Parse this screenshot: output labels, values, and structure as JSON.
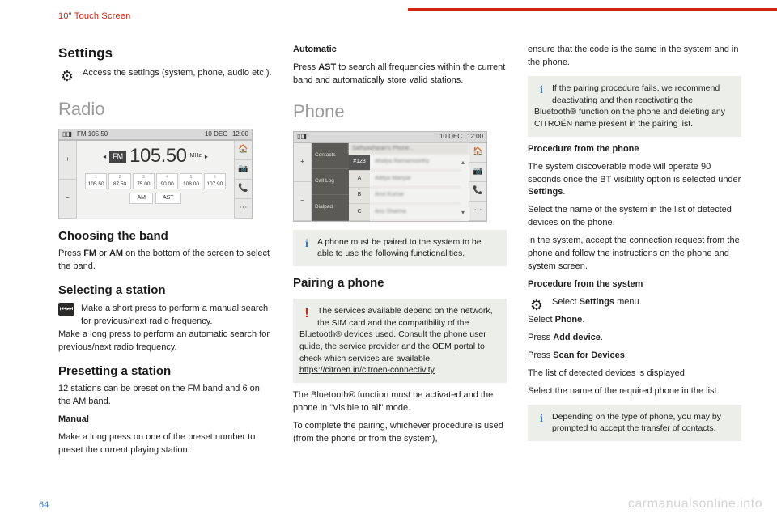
{
  "header": {
    "section": "10\" Touch Screen"
  },
  "col1": {
    "settings": {
      "title": "Settings",
      "text": "Access the settings (system, phone, audio etc.)."
    },
    "radio_h": "Radio",
    "radio_shot": {
      "top_left": "FM 105.50",
      "top_date": "10 DEC",
      "top_time": "12:00",
      "band": "FM",
      "freq": "105.50",
      "unit": "MHz",
      "presets": [
        {
          "n": "1",
          "v": "105.50"
        },
        {
          "n": "2",
          "v": "87.50"
        },
        {
          "n": "3",
          "v": "75.00"
        },
        {
          "n": "4",
          "v": "90.00"
        },
        {
          "n": "5",
          "v": "108.00"
        },
        {
          "n": "6",
          "v": "107.90"
        }
      ],
      "bands": [
        "AM",
        "AST"
      ],
      "side_icons": [
        "🏠",
        "📷",
        "📞",
        "⋯"
      ]
    },
    "choose": {
      "title": "Choosing the band",
      "p1a": "Press ",
      "p1b": "FM",
      "p1c": " or ",
      "p1d": "AM",
      "p1e": " on the bottom of the screen to select the band."
    },
    "select": {
      "title": "Selecting a station",
      "p1": "Make a short press to perform a manual search for previous/next radio frequency.",
      "p2": "Make a long press to perform an automatic search for previous/next radio frequency."
    },
    "preset": {
      "title": "Presetting a station",
      "p1": "12 stations can be preset on the FM band and 6 on the AM band.",
      "manual_h": "Manual",
      "manual_p": "Make a long press on one of the preset number to preset the current playing station."
    }
  },
  "col2": {
    "auto": {
      "h": "Automatic",
      "p_a": "Press ",
      "p_b": "AST",
      "p_c": " to search all frequencies within the current band and automatically store valid stations."
    },
    "phone_h": "Phone",
    "phone_shot": {
      "top_date": "10 DEC",
      "top_time": "12:00",
      "tabs": [
        "Contacts",
        "Call Log",
        "Dialpad"
      ],
      "alpha": [
        "#123",
        "A",
        "B",
        "C"
      ],
      "title": "Sathyasharan's Phone...",
      "rows": [
        "Ahalya Ramamoorthy",
        "Aditya Manyar",
        "Arvil Kumar",
        "Anu Sharma"
      ],
      "side_icons": [
        "🏠",
        "📷",
        "📞",
        "⋯"
      ]
    },
    "note1": "A phone must be paired to the system to be able to use the following functionalities.",
    "pair": {
      "title": "Pairing a phone"
    },
    "alert": {
      "p1": "The services available depend on the network, the SIM card and the compatibility of the Bluetooth® devices used. Consult the phone user guide, the service provider and the OEM portal to check which services are available.",
      "link": "https://citroen.in/citroen-connectivity"
    },
    "p_bt": "The Bluetooth® function must be activated and the phone in \"Visible to all\" mode.",
    "p_complete": "To complete the pairing, whichever procedure is used (from the phone or from the system),"
  },
  "col3": {
    "p_ensure": "ensure that the code is the same in the system and in the phone.",
    "note_fail": "If the pairing procedure fails, we recommend deactivating and then reactivating the Bluetooth® function on the phone and deleting any CITROËN name present in the pairing list.",
    "proc_phone": {
      "h": "Procedure from the phone",
      "p1a": "The system discoverable mode will operate 90 seconds once the BT visibility option is selected under ",
      "p1b": "Settings",
      "p1c": ".",
      "p2": "Select the name of the system in the list of detected devices on the phone.",
      "p3": "In the system, accept the connection request from the phone and follow the instructions on the phone and system screen."
    },
    "proc_sys": {
      "h": "Procedure from the system",
      "sel_a": "Select ",
      "sel_b": "Settings",
      "sel_c": " menu.",
      "l1a": "Select ",
      "l1b": "Phone",
      "l1c": ".",
      "l2a": "Press ",
      "l2b": "Add device",
      "l2c": ".",
      "l3a": "Press ",
      "l3b": "Scan for Devices",
      "l3c": ".",
      "l4": "The list of detected devices is displayed.",
      "l5": "Select the name of the required phone in the list."
    },
    "note_xfer": "Depending on the type of phone, you may by prompted to accept the transfer of contacts."
  },
  "footer": {
    "page": "64",
    "watermark": "carmanualsonline.info"
  }
}
